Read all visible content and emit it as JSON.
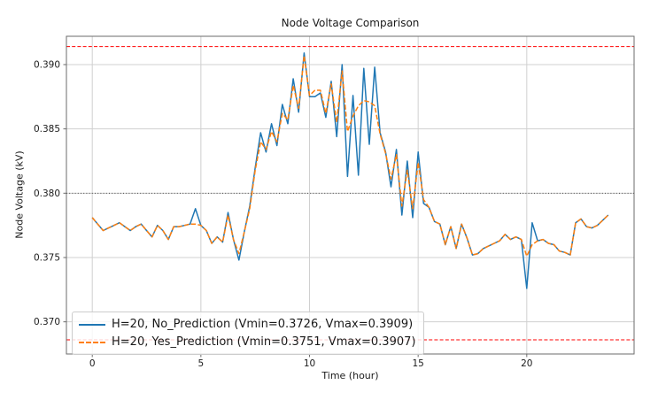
{
  "chart_data": {
    "type": "line",
    "title": "Node Voltage Comparison",
    "xlabel": "Time (hour)",
    "ylabel": "Node Voltage (kV)",
    "xlim": [
      -1.19,
      24.94
    ],
    "ylim": [
      0.3675,
      0.3922
    ],
    "xticks": [
      0,
      5,
      10,
      15,
      20
    ],
    "xtick_labels": [
      "0",
      "5",
      "10",
      "15",
      "20"
    ],
    "yticks": [
      0.37,
      0.375,
      0.38,
      0.385,
      0.39
    ],
    "ytick_labels": [
      "0.370",
      "0.375",
      "0.380",
      "0.385",
      "0.390"
    ],
    "grid": true,
    "grid_color": "#d0d0d0",
    "spine_color": "#6b6b6b",
    "legend_position": "lower left",
    "x_start": 0,
    "x_step": 0.25,
    "reference_lines": [
      {
        "name": "upper-voltage-limit",
        "value": 0.3914,
        "color": "#ff0000",
        "style": "dashed"
      },
      {
        "name": "lower-voltage-limit",
        "value": 0.3686,
        "color": "#ff0000",
        "style": "dashed"
      },
      {
        "name": "nominal-voltage",
        "value": 0.38,
        "color": "#4d4d4d",
        "style": "dotted"
      }
    ],
    "series": [
      {
        "name": "H=20, No_Prediction (Vmin=0.3726, Vmax=0.3909)",
        "color": "#1f77b4",
        "style": "solid",
        "vmin": 0.3726,
        "vmax": 0.3909,
        "values": [
          0.3781,
          0.3776,
          0.3771,
          0.3773,
          0.3775,
          0.3777,
          0.3774,
          0.3771,
          0.3774,
          0.3776,
          0.3771,
          0.3766,
          0.3775,
          0.3771,
          0.3764,
          0.3774,
          0.3774,
          0.3775,
          0.3776,
          0.3788,
          0.3775,
          0.3771,
          0.3761,
          0.3766,
          0.3762,
          0.3785,
          0.3764,
          0.3748,
          0.377,
          0.379,
          0.382,
          0.3847,
          0.3832,
          0.3854,
          0.3837,
          0.3869,
          0.3854,
          0.3889,
          0.3863,
          0.3909,
          0.3875,
          0.3875,
          0.3878,
          0.3859,
          0.3887,
          0.3844,
          0.39,
          0.3813,
          0.3876,
          0.3814,
          0.3897,
          0.3838,
          0.3898,
          0.3847,
          0.3832,
          0.3805,
          0.3834,
          0.3783,
          0.3825,
          0.3781,
          0.3832,
          0.3792,
          0.3789,
          0.3778,
          0.3776,
          0.376,
          0.3774,
          0.3757,
          0.3776,
          0.3765,
          0.3752,
          0.3753,
          0.3757,
          0.3759,
          0.3761,
          0.3763,
          0.3768,
          0.3764,
          0.3766,
          0.3764,
          0.3726,
          0.3777,
          0.3763,
          0.3764,
          0.3761,
          0.376,
          0.3755,
          0.3754,
          0.3752,
          0.3777,
          0.378,
          0.3774,
          0.3773,
          0.3775,
          0.3779,
          0.3783
        ]
      },
      {
        "name": "H=20, Yes_Prediction (Vmin=0.3751, Vmax=0.3907)",
        "color": "#ff7f0e",
        "style": "dashed",
        "vmin": 0.3751,
        "vmax": 0.3907,
        "values": [
          0.3781,
          0.3776,
          0.3771,
          0.3773,
          0.3775,
          0.3777,
          0.3774,
          0.3771,
          0.3774,
          0.3776,
          0.3771,
          0.3766,
          0.3775,
          0.3771,
          0.3764,
          0.3774,
          0.3774,
          0.3775,
          0.3776,
          0.3776,
          0.3775,
          0.3771,
          0.3761,
          0.3766,
          0.3762,
          0.3783,
          0.3764,
          0.3753,
          0.377,
          0.3788,
          0.3818,
          0.384,
          0.3834,
          0.3848,
          0.384,
          0.3862,
          0.3857,
          0.3884,
          0.3866,
          0.3907,
          0.3876,
          0.388,
          0.388,
          0.3862,
          0.3885,
          0.3855,
          0.3895,
          0.3848,
          0.386,
          0.3868,
          0.3872,
          0.3871,
          0.3868,
          0.3846,
          0.3831,
          0.3811,
          0.383,
          0.379,
          0.3818,
          0.3788,
          0.3824,
          0.3795,
          0.3789,
          0.3778,
          0.3776,
          0.376,
          0.3774,
          0.3757,
          0.3776,
          0.3765,
          0.3752,
          0.3753,
          0.3757,
          0.3759,
          0.3761,
          0.3763,
          0.3768,
          0.3764,
          0.3766,
          0.3764,
          0.3751,
          0.376,
          0.3763,
          0.3764,
          0.3761,
          0.376,
          0.3755,
          0.3754,
          0.3752,
          0.3777,
          0.378,
          0.3774,
          0.3773,
          0.3775,
          0.3779,
          0.3783
        ]
      }
    ]
  }
}
